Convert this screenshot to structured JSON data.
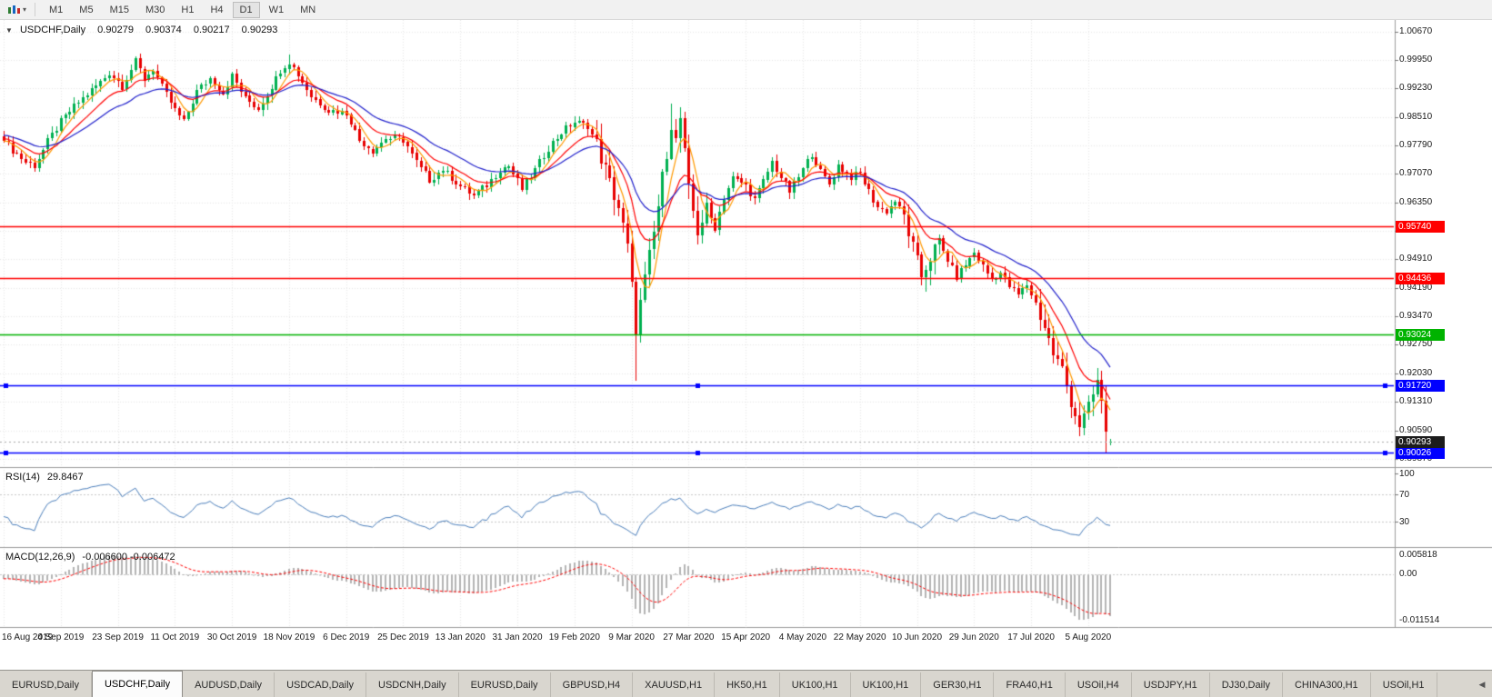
{
  "toolbar": {
    "timeframes": [
      "M1",
      "M5",
      "M15",
      "M30",
      "H1",
      "H4",
      "D1",
      "W1",
      "MN"
    ],
    "active_timeframe": "D1"
  },
  "title_bar": {
    "collapse_icon": "▼",
    "symbol": "USDCHF,Daily",
    "open": "0.90279",
    "high": "0.90374",
    "low": "0.90217",
    "close": "0.90293"
  },
  "indicators": {
    "rsi": {
      "label": "RSI(14)",
      "value": "29.8467",
      "axis_labels": [
        "100",
        "70",
        "30"
      ],
      "levels": [
        100,
        70,
        30
      ]
    },
    "macd": {
      "label": "MACD(12,26,9)",
      "values": "-0.006600 -0.006472",
      "axis_labels": [
        "0.005818",
        "0.00",
        "-0.011514"
      ]
    }
  },
  "price_axis": {
    "ticks": [
      "1.00670",
      "0.99950",
      "0.99230",
      "0.98510",
      "0.97790",
      "0.97070",
      "0.96350",
      "0.95630",
      "0.94910",
      "0.94190",
      "0.93470",
      "0.92750",
      "0.92030",
      "0.91310",
      "0.90590",
      "0.89870"
    ]
  },
  "chart_data": {
    "type": "candlestick",
    "title": "USDCHF,Daily",
    "symbol": "USDCHF",
    "timeframe": "Daily",
    "x_axis_labels": [
      "16 Aug 2019",
      "4 Sep 2019",
      "23 Sep 2019",
      "11 Oct 2019",
      "30 Oct 2019",
      "18 Nov 2019",
      "6 Dec 2019",
      "25 Dec 2019",
      "13 Jan 2020",
      "31 Jan 2020",
      "19 Feb 2020",
      "9 Mar 2020",
      "27 Mar 2020",
      "15 Apr 2020",
      "4 May 2020",
      "22 May 2020",
      "10 Jun 2020",
      "29 Jun 2020",
      "17 Jul 2020",
      "5 Aug 2020"
    ],
    "candles_per_label": 13,
    "num_candles": 253,
    "price_range_top": 1.0096,
    "price_range_bottom": 0.8966,
    "up_color": "#00b050",
    "down_color": "#e80000",
    "close_anchors": [
      [
        0,
        0.979
      ],
      [
        2,
        0.9768
      ],
      [
        5,
        0.9738
      ],
      [
        7,
        0.9728
      ],
      [
        10,
        0.9788
      ],
      [
        13,
        0.9838
      ],
      [
        16,
        0.9878
      ],
      [
        20,
        0.9918
      ],
      [
        24,
        0.9962
      ],
      [
        27,
        0.993
      ],
      [
        30,
        0.999
      ],
      [
        32,
        0.9948
      ],
      [
        34,
        0.9972
      ],
      [
        36,
        0.9926
      ],
      [
        39,
        0.9868
      ],
      [
        41,
        0.9838
      ],
      [
        44,
        0.9916
      ],
      [
        47,
        0.9948
      ],
      [
        50,
        0.9912
      ],
      [
        52,
        0.9956
      ],
      [
        55,
        0.9898
      ],
      [
        58,
        0.9872
      ],
      [
        61,
        0.9928
      ],
      [
        63,
        0.997
      ],
      [
        65,
        0.9992
      ],
      [
        67,
        0.9958
      ],
      [
        70,
        0.9904
      ],
      [
        74,
        0.9868
      ],
      [
        78,
        0.9862
      ],
      [
        81,
        0.9792
      ],
      [
        84,
        0.9766
      ],
      [
        87,
        0.9798
      ],
      [
        91,
        0.9794
      ],
      [
        94,
        0.9736
      ],
      [
        97,
        0.9692
      ],
      [
        100,
        0.9718
      ],
      [
        104,
        0.9676
      ],
      [
        107,
        0.9652
      ],
      [
        110,
        0.9678
      ],
      [
        113,
        0.9718
      ],
      [
        115,
        0.9728
      ],
      [
        118,
        0.9668
      ],
      [
        121,
        0.9718
      ],
      [
        124,
        0.9772
      ],
      [
        127,
        0.9812
      ],
      [
        130,
        0.9838
      ],
      [
        133,
        0.9828
      ],
      [
        135,
        0.9782
      ],
      [
        138,
        0.9684
      ],
      [
        140,
        0.9622
      ],
      [
        142,
        0.952
      ],
      [
        143,
        0.942
      ],
      [
        144,
        0.932
      ],
      [
        146,
        0.944
      ],
      [
        148,
        0.9556
      ],
      [
        150,
        0.9696
      ],
      [
        152,
        0.9836
      ],
      [
        153,
        0.979
      ],
      [
        154,
        0.9848
      ],
      [
        156,
        0.9664
      ],
      [
        158,
        0.9562
      ],
      [
        160,
        0.9618
      ],
      [
        162,
        0.9572
      ],
      [
        164,
        0.9648
      ],
      [
        166,
        0.9698
      ],
      [
        169,
        0.9678
      ],
      [
        171,
        0.9642
      ],
      [
        173,
        0.9688
      ],
      [
        175,
        0.9738
      ],
      [
        177,
        0.9698
      ],
      [
        179,
        0.9662
      ],
      [
        182,
        0.9718
      ],
      [
        184,
        0.9758
      ],
      [
        186,
        0.9712
      ],
      [
        188,
        0.9682
      ],
      [
        190,
        0.9728
      ],
      [
        193,
        0.9698
      ],
      [
        195,
        0.9708
      ],
      [
        197,
        0.9662
      ],
      [
        199,
        0.9622
      ],
      [
        201,
        0.9612
      ],
      [
        203,
        0.9638
      ],
      [
        205,
        0.9598
      ],
      [
        207,
        0.9518
      ],
      [
        209,
        0.9448
      ],
      [
        211,
        0.9498
      ],
      [
        213,
        0.9532
      ],
      [
        215,
        0.9488
      ],
      [
        217,
        0.9448
      ],
      [
        219,
        0.9478
      ],
      [
        221,
        0.9508
      ],
      [
        223,
        0.9472
      ],
      [
        225,
        0.9442
      ],
      [
        227,
        0.9458
      ],
      [
        229,
        0.9422
      ],
      [
        231,
        0.9402
      ],
      [
        233,
        0.9428
      ],
      [
        235,
        0.9378
      ],
      [
        237,
        0.9322
      ],
      [
        239,
        0.9252
      ],
      [
        241,
        0.9212
      ],
      [
        243,
        0.9132
      ],
      [
        245,
        0.9072
      ],
      [
        247,
        0.9112
      ],
      [
        249,
        0.9182
      ],
      [
        250,
        0.9122
      ],
      [
        251,
        0.9062
      ],
      [
        252,
        0.90293
      ]
    ],
    "volatile_zones": [
      [
        135,
        160
      ],
      [
        205,
        213
      ],
      [
        235,
        252
      ]
    ],
    "wick_overrides": [
      {
        "i": 7,
        "low": 0.9712
      },
      {
        "i": 30,
        "high": 1.0005
      },
      {
        "i": 65,
        "high": 1.0008
      },
      {
        "i": 107,
        "low": 0.9644
      },
      {
        "i": 144,
        "low": 0.9185
      },
      {
        "i": 152,
        "high": 0.9885
      },
      {
        "i": 154,
        "high": 0.9876
      },
      {
        "i": 209,
        "low": 0.9425
      },
      {
        "i": 245,
        "low": 0.9045
      },
      {
        "i": 251,
        "low": 0.9002
      }
    ],
    "last_candle": {
      "open": 0.90279,
      "high": 0.90374,
      "low": 0.90217,
      "close": 0.90293
    },
    "current_price": 0.90293,
    "current_price_label": "0.90293",
    "moving_averages": [
      {
        "period": 5,
        "type": "sma",
        "color": "#ff9900"
      },
      {
        "period": 12,
        "type": "ema",
        "color": "#ff0000"
      },
      {
        "period": 24,
        "type": "ema",
        "color": "#2222cc"
      }
    ],
    "hlines": [
      {
        "price": 0.9574,
        "label": "0.95740",
        "color": "#ff0000",
        "handles": false
      },
      {
        "price": 0.94436,
        "label": "0.94436",
        "color": "#ff0000",
        "handles": false
      },
      {
        "price": 0.93024,
        "label": "0.93024",
        "color": "#00b300",
        "handles": false
      },
      {
        "price": 0.9172,
        "label": "0.91720",
        "color": "#0000ff",
        "handles": true
      },
      {
        "price": 0.90026,
        "label": "0.90026",
        "color": "#0000ff",
        "handles": true
      }
    ],
    "rsi": {
      "period": 14,
      "color": "#4a7ebb"
    },
    "macd": {
      "fast": 12,
      "slow": 26,
      "signal": 9,
      "histogram_color": "#b4b4b4",
      "signal_color": "#ff0000"
    }
  },
  "tabs": [
    {
      "label": "EURUSD,Daily"
    },
    {
      "label": "USDCHF,Daily",
      "active": true
    },
    {
      "label": "AUDUSD,Daily"
    },
    {
      "label": "USDCAD,Daily"
    },
    {
      "label": "USDCNH,Daily"
    },
    {
      "label": "EURUSD,Daily"
    },
    {
      "label": "GBPUSD,H4"
    },
    {
      "label": "XAUUSD,H1"
    },
    {
      "label": "HK50,H1"
    },
    {
      "label": "UK100,H1"
    },
    {
      "label": "UK100,H1"
    },
    {
      "label": "GER30,H1"
    },
    {
      "label": "FRA40,H1"
    },
    {
      "label": "USOil,H4"
    },
    {
      "label": "USDJPY,H1"
    },
    {
      "label": "DJ30,Daily"
    },
    {
      "label": "CHINA300,H1"
    },
    {
      "label": "USOil,H1"
    }
  ],
  "tab_bar": {
    "scroll_left": "◀"
  }
}
